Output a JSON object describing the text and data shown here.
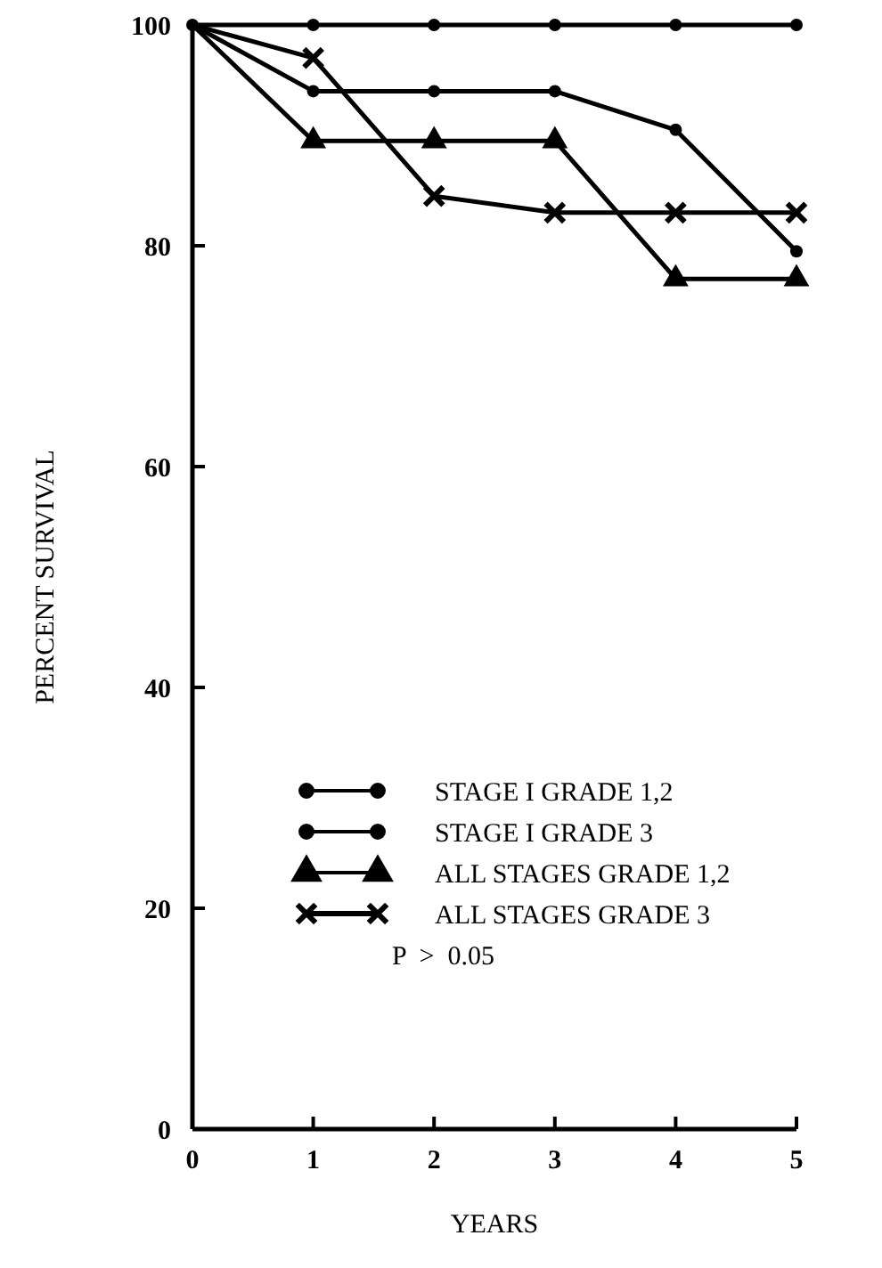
{
  "chart_data": {
    "type": "line",
    "xlabel": "YEARS",
    "ylabel": "PERCENT SURVIVAL",
    "x": [
      0,
      1,
      2,
      3,
      4,
      5
    ],
    "xlim": [
      0,
      5
    ],
    "xticks": [
      0,
      1,
      2,
      3,
      4,
      5
    ],
    "ylim": [
      0,
      100
    ],
    "yticks": [
      0,
      20,
      40,
      60,
      80,
      100
    ],
    "grid": false,
    "legend": "bottom right",
    "series": [
      {
        "name": "STAGE I GRADE 1,2",
        "color": "#000000",
        "marker": "circle",
        "values": [
          100,
          100,
          100,
          100,
          100,
          100
        ]
      },
      {
        "name": "STAGE I GRADE 3",
        "color": "#000000",
        "marker": "circle",
        "values": [
          100,
          94,
          94,
          94,
          90.5,
          79.5
        ]
      },
      {
        "name": "ALL STAGES GRADE 1,2",
        "color": "#000000",
        "marker": "triangle",
        "values": [
          100,
          89.5,
          89.5,
          89.5,
          77,
          77
        ]
      },
      {
        "name": "ALL STAGES GRADE 3",
        "color": "#000000",
        "marker": "cross",
        "values": [
          100,
          97,
          84.5,
          83,
          83,
          83
        ]
      }
    ],
    "annotations": [
      "P  >  0.05"
    ]
  }
}
